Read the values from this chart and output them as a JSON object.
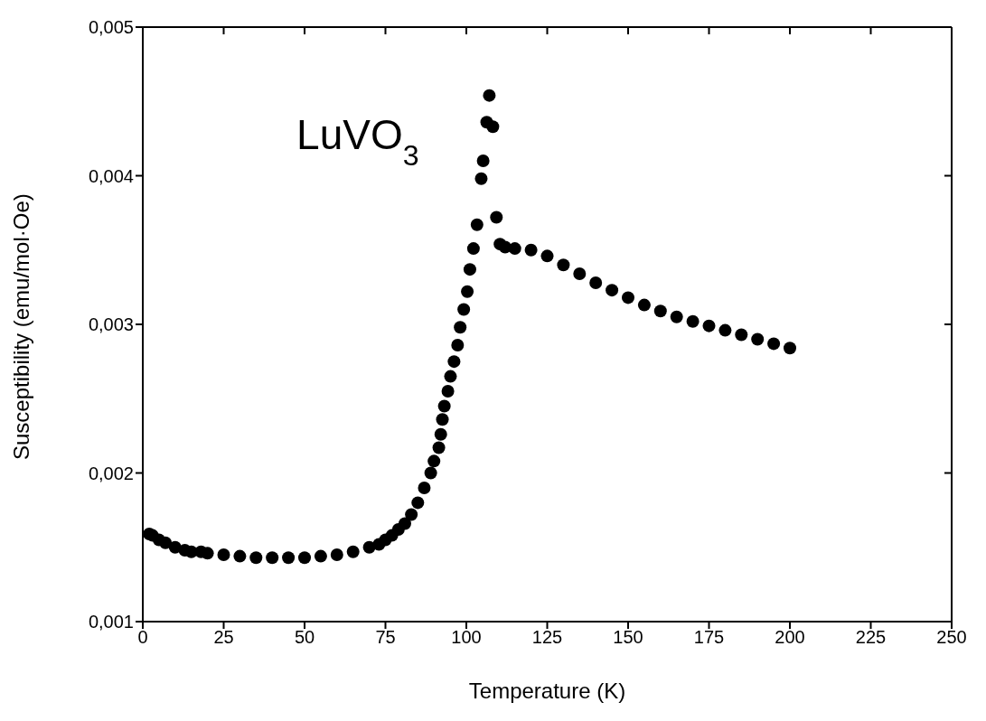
{
  "chart_data": {
    "type": "scatter",
    "xlabel": "Temperature (K)",
    "ylabel": "Susceptibility (emu/mol·Oe)",
    "annotations": [
      "LuVO$_{3}$"
    ],
    "x": [
      2,
      3,
      5,
      7,
      10,
      13,
      15,
      18,
      20,
      25,
      30,
      35,
      40,
      45,
      50,
      55,
      60,
      65,
      70,
      73,
      75,
      77,
      79,
      81,
      83,
      85,
      87,
      89,
      90,
      91.5,
      92.1,
      92.6,
      93.2,
      94.3,
      95.1,
      96.2,
      97.3,
      98.1,
      99.2,
      100.3,
      101.1,
      102.2,
      103.3,
      104.6,
      105.2,
      106.3,
      107.1,
      108.2,
      109.3,
      110.4,
      112,
      115,
      120,
      125,
      130,
      135,
      140,
      145,
      150,
      155,
      160,
      165,
      170,
      175,
      180,
      185,
      190,
      195,
      200
    ],
    "series": [
      {
        "color": "#000000",
        "values": [
          0.00159,
          0.00158,
          0.00155,
          0.00153,
          0.0015,
          0.00148,
          0.00147,
          0.00147,
          0.00146,
          0.00145,
          0.00144,
          0.00143,
          0.00143,
          0.00143,
          0.00143,
          0.00144,
          0.00145,
          0.00147,
          0.0015,
          0.00152,
          0.00155,
          0.00158,
          0.00162,
          0.00166,
          0.00172,
          0.0018,
          0.0019,
          0.002,
          0.00208,
          0.00217,
          0.00226,
          0.00236,
          0.00245,
          0.00255,
          0.00265,
          0.00275,
          0.00286,
          0.00298,
          0.0031,
          0.00322,
          0.00337,
          0.00351,
          0.00367,
          0.00398,
          0.0041,
          0.00436,
          0.00454,
          0.00433,
          0.00372,
          0.00354,
          0.00352,
          0.00351,
          0.0035,
          0.00346,
          0.0034,
          0.00334,
          0.00328,
          0.00323,
          0.00318,
          0.00313,
          0.00309,
          0.00305,
          0.00302,
          0.00299,
          0.00296,
          0.00293,
          0.0029,
          0.00287,
          0.00284
        ]
      }
    ],
    "xlim": [
      0,
      250
    ],
    "xticks": [
      0,
      25,
      50,
      75,
      100,
      125,
      150,
      175,
      200,
      225,
      250
    ],
    "ylim": [
      0.001,
      0.005
    ],
    "yticks": [
      {
        "value": 0.001,
        "label": "0,001"
      },
      {
        "value": 0.002,
        "label": "0,002"
      },
      {
        "value": 0.003,
        "label": "0,003"
      },
      {
        "value": 0.004,
        "label": "0,004"
      },
      {
        "value": 0.005,
        "label": "0,005"
      }
    ],
    "marker": "circle"
  }
}
